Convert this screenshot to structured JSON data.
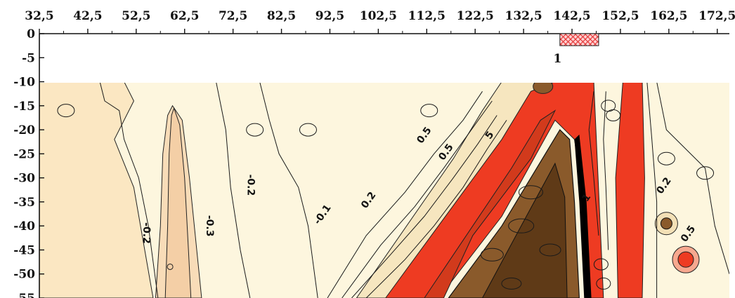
{
  "chart_data": {
    "type": "heatmap",
    "title": "",
    "xlabel": "",
    "ylabel": "",
    "xlim": [
      32.5,
      175
    ],
    "ylim": [
      -55,
      0
    ],
    "x_ticks": [
      "32,5",
      "42,5",
      "52,5",
      "62,5",
      "72,5",
      "82,5",
      "92,5",
      "102,5",
      "112,5",
      "122,5",
      "132,5",
      "142,5",
      "152,5",
      "162,5",
      "172,5"
    ],
    "x_tick_values": [
      32.5,
      42.5,
      52.5,
      62.5,
      72.5,
      82.5,
      92.5,
      102.5,
      112.5,
      122.5,
      132.5,
      142.5,
      152.5,
      162.5,
      172.5
    ],
    "y_ticks": [
      "0",
      "-5",
      "-10",
      "-15",
      "-20",
      "-25",
      "-30",
      "-35",
      "-40",
      "-45",
      "-50",
      "-55"
    ],
    "y_tick_values": [
      0,
      -5,
      -10,
      -15,
      -20,
      -25,
      -30,
      -35,
      -40,
      -45,
      -50,
      -55
    ],
    "data_extent": {
      "x": [
        32.5,
        175
      ],
      "y": [
        -10,
        -55
      ]
    },
    "annotations": [
      {
        "text": "1",
        "x": 139.5,
        "y": -6
      },
      {
        "text": "-0.2",
        "x": 54,
        "y": -41.5
      },
      {
        "text": "-0.3",
        "x": 67,
        "y": -40
      },
      {
        "text": "-0.2",
        "x": 75.5,
        "y": -31.5
      },
      {
        "text": "-0.1",
        "x": 91.5,
        "y": -38
      },
      {
        "text": "0.2",
        "x": 101,
        "y": -35
      },
      {
        "text": "0.5",
        "x": 117,
        "y": -25
      },
      {
        "text": "0.5",
        "x": 112.5,
        "y": -21.5
      },
      {
        "text": "5",
        "x": 126,
        "y": -21.5
      },
      {
        "text": "1",
        "x": 146,
        "y": -34.5
      },
      {
        "text": "0.2",
        "x": 162,
        "y": -32
      },
      {
        "text": "0.5",
        "x": 167,
        "y": -42
      }
    ],
    "marker": {
      "label": "1",
      "x": [
        140,
        148
      ],
      "y": [
        0,
        -2.5
      ],
      "pattern": "crosshatch"
    },
    "colors": {
      "lowest": "#f4cfa6",
      "low": "#fbe7c2",
      "background": "#fdf6de",
      "mid": "#fbf1cf",
      "high": "#ee3b22",
      "higher": "#d23a1c",
      "deep": "#8a5a2b",
      "deepest": "#5f3a17",
      "black": "#000000",
      "marker": "#ff7373"
    }
  }
}
